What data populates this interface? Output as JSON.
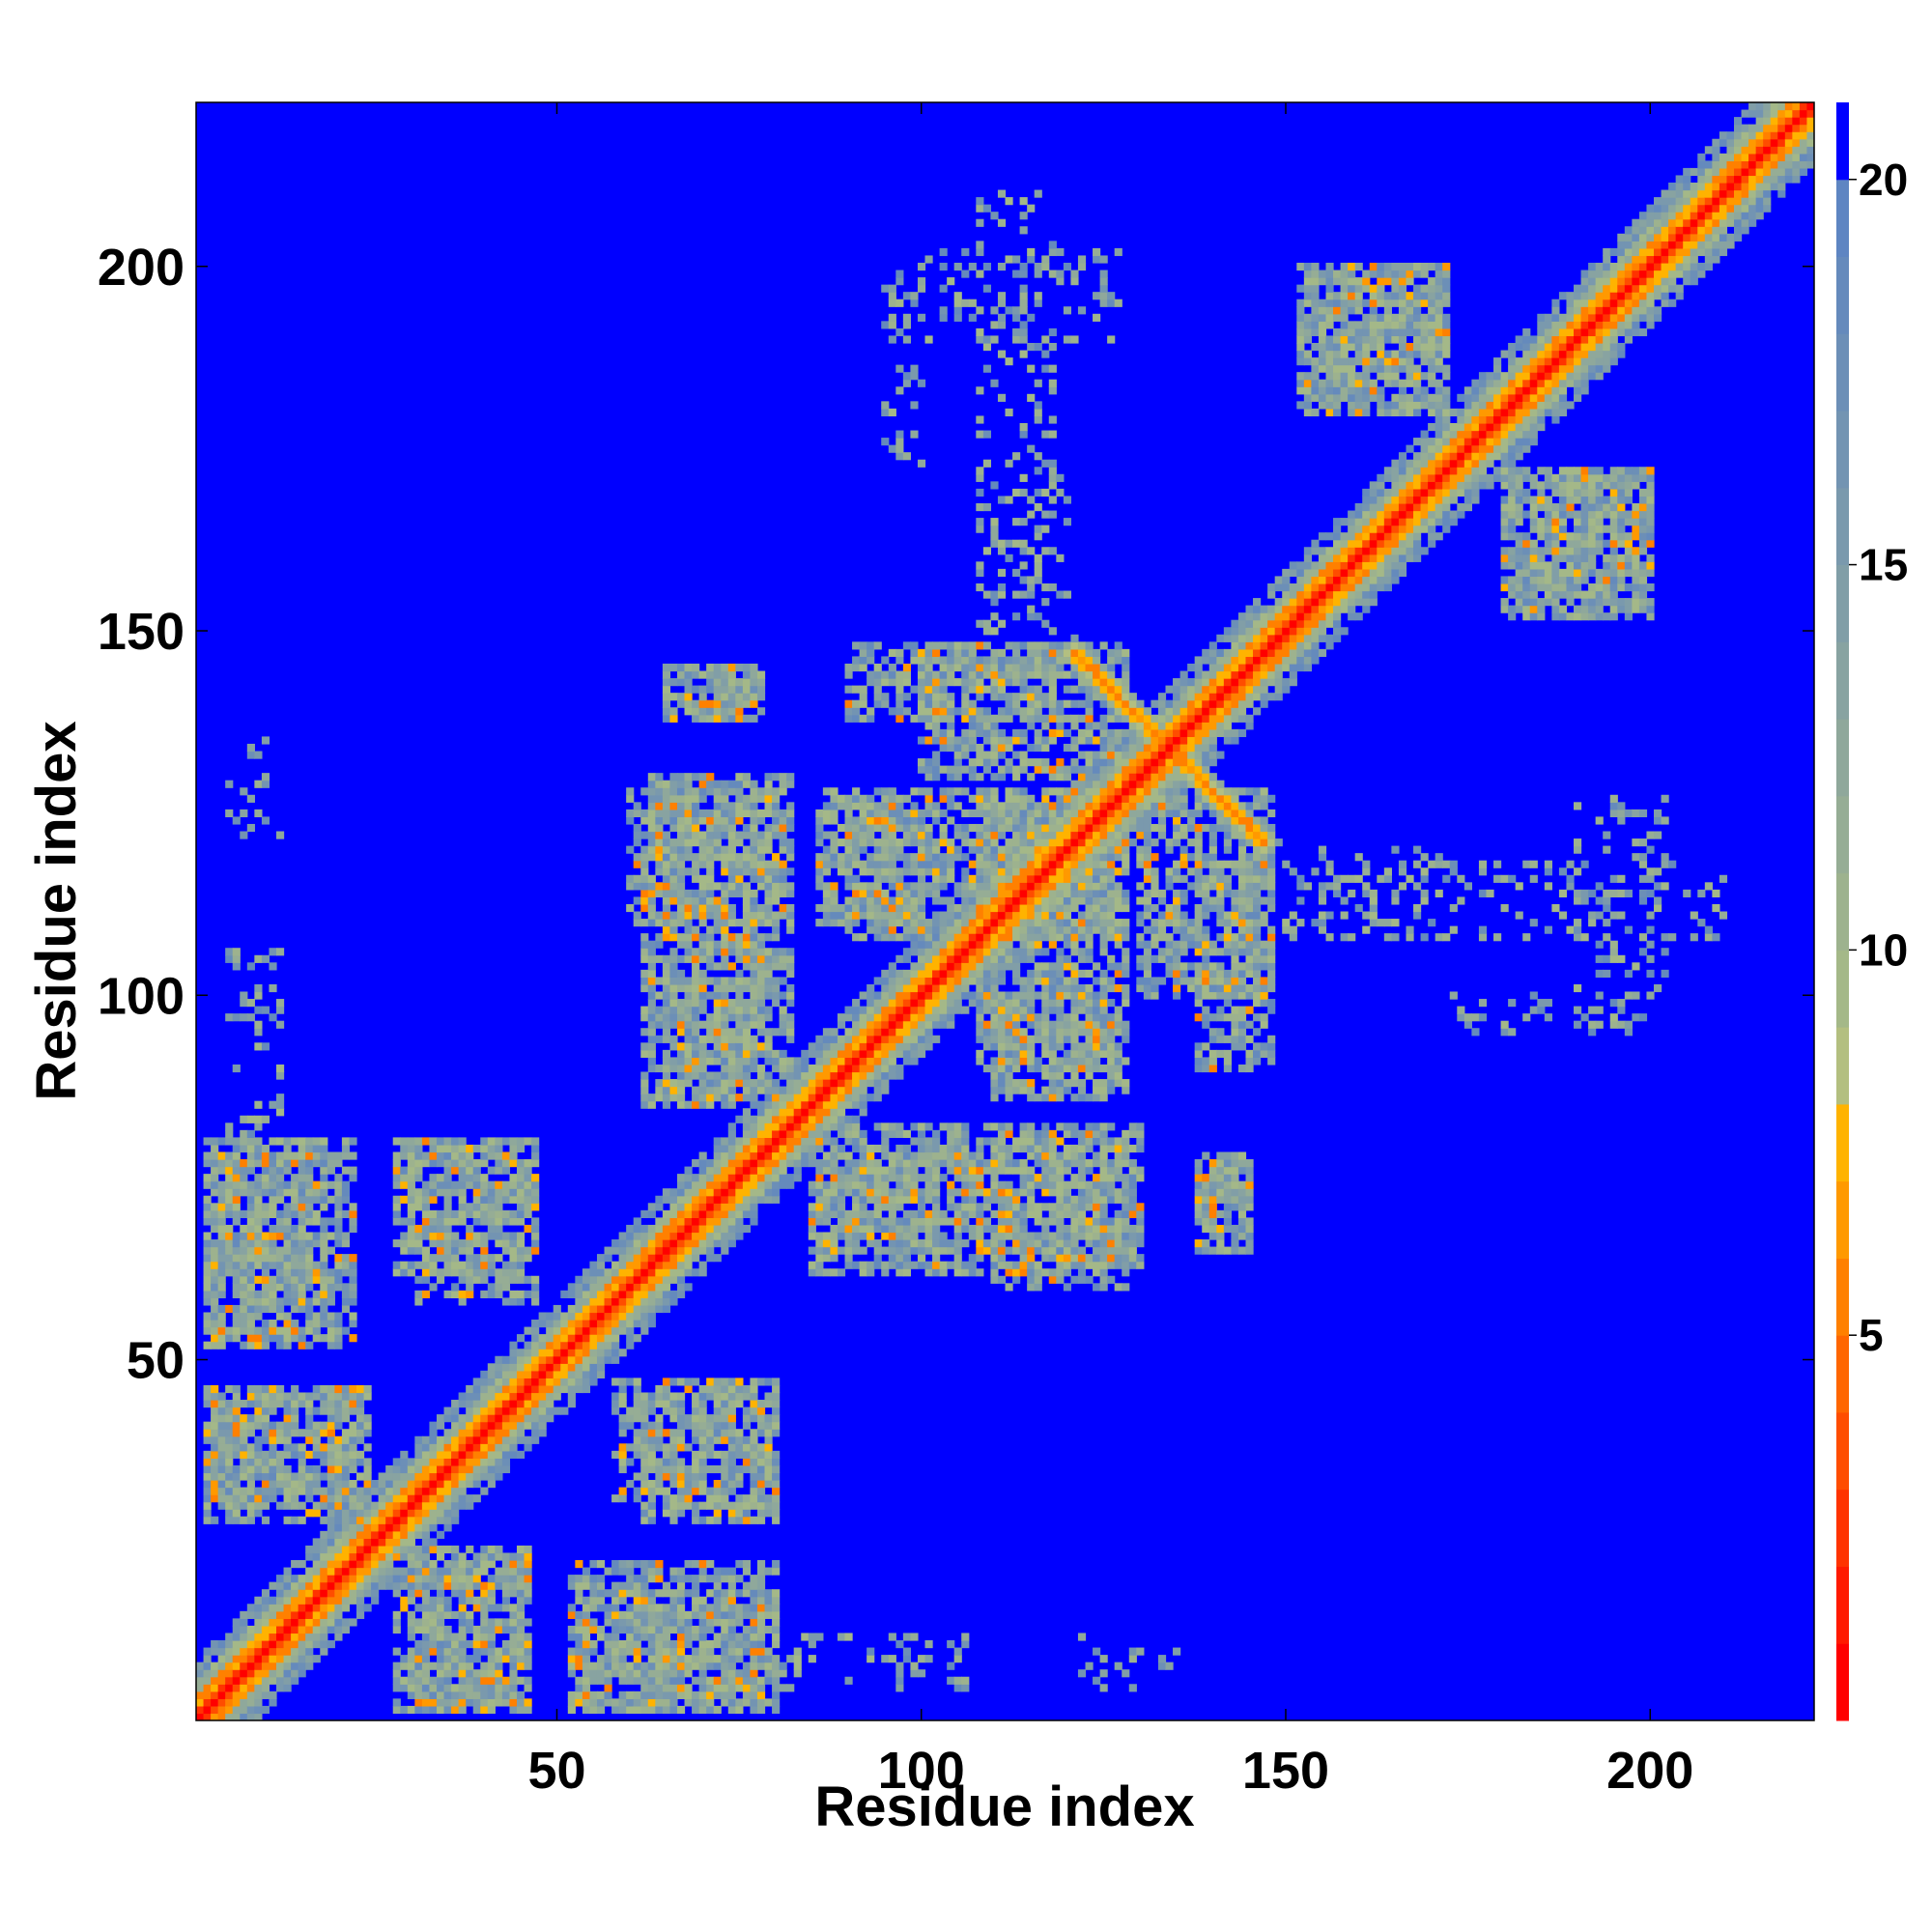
{
  "chart_data": {
    "type": "heatmap",
    "title": "",
    "xlabel": "Residue index",
    "ylabel": "Residue index",
    "n_residues": 222,
    "xlim": [
      1,
      222
    ],
    "ylim": [
      1,
      222
    ],
    "x_ticks": [
      50,
      100,
      150,
      200
    ],
    "y_ticks": [
      50,
      100,
      150,
      200
    ],
    "colorbar": {
      "range": [
        0,
        21
      ],
      "ticks": [
        5,
        10,
        15,
        20
      ],
      "levels": [
        {
          "upper": 1,
          "color": "#ff0000"
        },
        {
          "upper": 2,
          "color": "#ff1a00"
        },
        {
          "upper": 3,
          "color": "#ff3300"
        },
        {
          "upper": 4,
          "color": "#ff4d00"
        },
        {
          "upper": 5,
          "color": "#ff6600"
        },
        {
          "upper": 6,
          "color": "#ff8000"
        },
        {
          "upper": 7,
          "color": "#ff9900"
        },
        {
          "upper": 8,
          "color": "#ffb300"
        },
        {
          "upper": 9,
          "color": "#b3bf80"
        },
        {
          "upper": 10,
          "color": "#a4b888"
        },
        {
          "upper": 11,
          "color": "#9db28e"
        },
        {
          "upper": 12,
          "color": "#96ad95"
        },
        {
          "upper": 13,
          "color": "#8fa89b"
        },
        {
          "upper": 14,
          "color": "#88a3a1"
        },
        {
          "upper": 15,
          "color": "#819ea7"
        },
        {
          "upper": 16,
          "color": "#7a99ad"
        },
        {
          "upper": 17,
          "color": "#7394b2"
        },
        {
          "upper": 18,
          "color": "#6c8fb7"
        },
        {
          "upper": 19,
          "color": "#658abc"
        },
        {
          "upper": 20,
          "color": "#5e85c2"
        },
        {
          "upper": 21,
          "color": "#0000ff"
        }
      ]
    },
    "background_color": "#0000ff",
    "diagonal_band": {
      "width_residues": 8,
      "core_value": 1
    },
    "contact_regions": [
      {
        "x": [
          2,
          18
        ],
        "y": [
          52,
          80
        ]
      },
      {
        "x": [
          30,
          47
        ],
        "y": [
          58,
          80
        ]
      },
      {
        "x": [
          2,
          24
        ],
        "y": [
          30,
          46
        ]
      },
      {
        "x": [
          28,
          46
        ],
        "y": [
          2,
          24
        ]
      },
      {
        "x": [
          52,
          80
        ],
        "y": [
          2,
          22
        ]
      },
      {
        "x": [
          62,
          80
        ],
        "y": [
          28,
          46
        ]
      },
      {
        "x": [
          62,
          78
        ],
        "y": [
          85,
          108
        ]
      },
      {
        "x": [
          60,
          80
        ],
        "y": [
          110,
          128
        ]
      },
      {
        "x": [
          65,
          78
        ],
        "y": [
          138,
          145
        ]
      },
      {
        "x": [
          85,
          110
        ],
        "y": [
          65,
          82
        ]
      },
      {
        "x": [
          110,
          130
        ],
        "y": [
          63,
          82
        ]
      },
      {
        "x": [
          138,
          145
        ],
        "y": [
          68,
          77
        ]
      },
      {
        "x": [
          90,
          128
        ],
        "y": [
          108,
          128
        ]
      },
      {
        "x": [
          100,
          128
        ],
        "y": [
          130,
          148
        ]
      },
      {
        "x": [
          110,
          128
        ],
        "y": [
          86,
          100
        ]
      },
      {
        "x": [
          138,
          148
        ],
        "y": [
          90,
          118
        ]
      },
      {
        "x": [
          152,
          172
        ],
        "y": [
          180,
          200
        ]
      },
      {
        "x": [
          180,
          200
        ],
        "y": [
          152,
          172
        ]
      }
    ],
    "antiparallel_contacts": [
      {
        "x": [
          121,
          147
        ],
        "y": [
          147,
          121
        ]
      }
    ],
    "sparse_contacts": [
      {
        "x": [
          96,
          128
        ],
        "y": [
          190,
          202
        ]
      },
      {
        "x": [
          110,
          120
        ],
        "y": [
          150,
          172
        ]
      },
      {
        "x": [
          80,
          100
        ],
        "y": [
          5,
          12
        ]
      },
      {
        "x": [
          125,
          135
        ],
        "y": [
          5,
          10
        ]
      },
      {
        "x": [
          150,
          210
        ],
        "y": [
          108,
          118
        ]
      },
      {
        "x": [
          170,
          198
        ],
        "y": [
          95,
          100
        ]
      },
      {
        "x": [
          5,
          12
        ],
        "y": [
          95,
          106
        ]
      },
      {
        "x": [
          5,
          12
        ],
        "y": [
          120,
          125
        ]
      }
    ]
  }
}
